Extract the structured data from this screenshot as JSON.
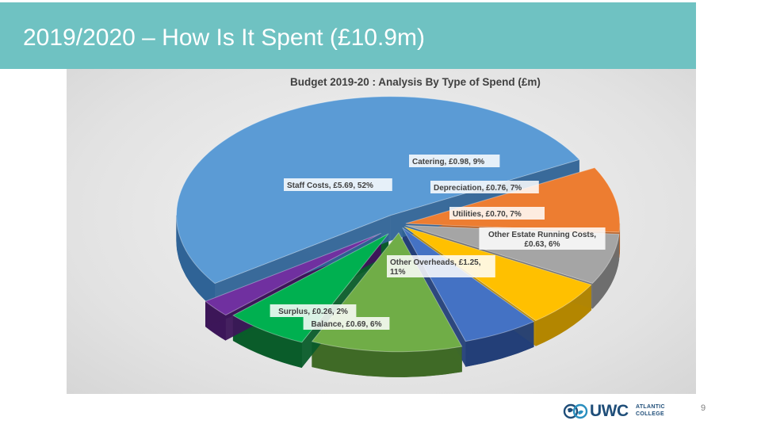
{
  "slide": {
    "title": "2019/2020 – How Is It Spent (£10.9m)",
    "page_number": "9"
  },
  "logo": {
    "word": "UWC",
    "line1": "ATLANTIC",
    "line2": "COLLEGE",
    "icon": "globe-icon"
  },
  "chart_data": {
    "type": "pie",
    "title": "Budget 2019-20 : Analysis By Type of Spend (£m)",
    "units": "£m",
    "legend": "none",
    "style": "3d-exploded",
    "slices": [
      {
        "name": "Catering",
        "value": 0.98,
        "percent": 9,
        "label": [
          "Catering, £0.98, 9%"
        ],
        "color": "#ed7d31",
        "dark": "#b35a1e"
      },
      {
        "name": "Depreciation",
        "value": 0.76,
        "percent": 7,
        "label": [
          "Depreciation, £0.76, 7%"
        ],
        "color": "#a5a5a5",
        "dark": "#6e6e6e"
      },
      {
        "name": "Utilities",
        "value": 0.7,
        "percent": 7,
        "label": [
          "Utilities, £0.70, 7%"
        ],
        "color": "#ffc000",
        "dark": "#b38600"
      },
      {
        "name": "Other Estate Running Costs",
        "value": 0.63,
        "percent": 6,
        "label": [
          "Other Estate Running Costs,",
          "£0.63, 6%"
        ],
        "color": "#4472c4",
        "dark": "#233f78"
      },
      {
        "name": "Other Overheads",
        "value": 1.25,
        "percent": 11,
        "label": [
          "Other Overheads, £1.25,",
          "11%"
        ],
        "color": "#70ad47",
        "dark": "#3f6a26"
      },
      {
        "name": "Balance",
        "value": 0.69,
        "percent": 6,
        "label": [
          "Balance, £0.69, 6%"
        ],
        "color": "#00b050",
        "dark": "#0a5c2a"
      },
      {
        "name": "Surplus",
        "value": 0.26,
        "percent": 2,
        "label": [
          "Surplus, £0.26, 2%"
        ],
        "color": "#7030a0",
        "dark": "#3c1659"
      },
      {
        "name": "Staff Costs",
        "value": 5.69,
        "percent": 52,
        "label": [
          "Staff Costs, £5.69, 52%"
        ],
        "color": "#5b9bd5",
        "dark": "#2f6396"
      }
    ]
  }
}
